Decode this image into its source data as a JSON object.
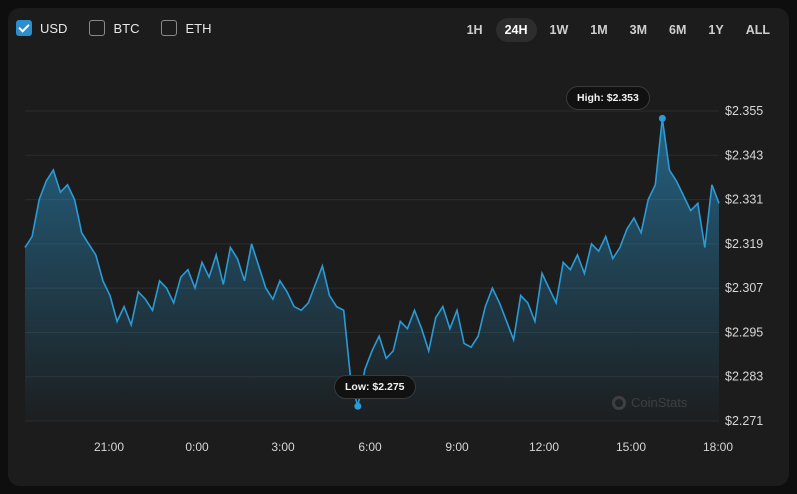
{
  "legend": [
    {
      "label": "USD",
      "checked": true
    },
    {
      "label": "BTC",
      "checked": false
    },
    {
      "label": "ETH",
      "checked": false
    }
  ],
  "ranges": [
    "1H",
    "24H",
    "1W",
    "1M",
    "3M",
    "6M",
    "1Y",
    "ALL"
  ],
  "active_range": "24H",
  "tooltips": {
    "high": "High: $2.353",
    "low": "Low: $2.275"
  },
  "watermark": "CoinStats",
  "colors": {
    "line": "#2b9bd6",
    "accent": "#2b8fcf",
    "background": "#1c1c1c"
  },
  "chart_data": {
    "type": "area",
    "y_ticks": [
      "$2.355",
      "$2.343",
      "$2.331",
      "$2.319",
      "$2.307",
      "$2.295",
      "$2.283",
      "$2.271"
    ],
    "x_ticks": [
      "21:00",
      "0:00",
      "3:00",
      "6:00",
      "9:00",
      "12:00",
      "15:00",
      "18:00"
    ],
    "ylim": [
      2.271,
      2.355
    ],
    "high": 2.353,
    "low": 2.275,
    "series": [
      {
        "values": [
          2.318,
          2.321,
          2.331,
          2.336,
          2.339,
          2.333,
          2.335,
          2.331,
          2.322,
          2.319,
          2.316,
          2.309,
          2.305,
          2.298,
          2.302,
          2.297,
          2.306,
          2.304,
          2.301,
          2.309,
          2.307,
          2.303,
          2.31,
          2.312,
          2.307,
          2.314,
          2.31,
          2.316,
          2.308,
          2.318,
          2.315,
          2.309,
          2.319,
          2.313,
          2.307,
          2.304,
          2.309,
          2.306,
          2.302,
          2.301,
          2.303,
          2.308,
          2.313,
          2.305,
          2.302,
          2.301,
          2.282,
          2.275,
          2.285,
          2.29,
          2.294,
          2.288,
          2.29,
          2.298,
          2.296,
          2.301,
          2.296,
          2.29,
          2.299,
          2.302,
          2.296,
          2.301,
          2.292,
          2.291,
          2.294,
          2.302,
          2.307,
          2.303,
          2.298,
          2.293,
          2.305,
          2.303,
          2.298,
          2.311,
          2.307,
          2.303,
          2.314,
          2.312,
          2.316,
          2.311,
          2.319,
          2.317,
          2.321,
          2.315,
          2.318,
          2.323,
          2.326,
          2.322,
          2.331,
          2.335,
          2.353,
          2.339,
          2.336,
          2.332,
          2.328,
          2.33,
          2.318,
          2.335,
          2.33
        ]
      }
    ]
  }
}
